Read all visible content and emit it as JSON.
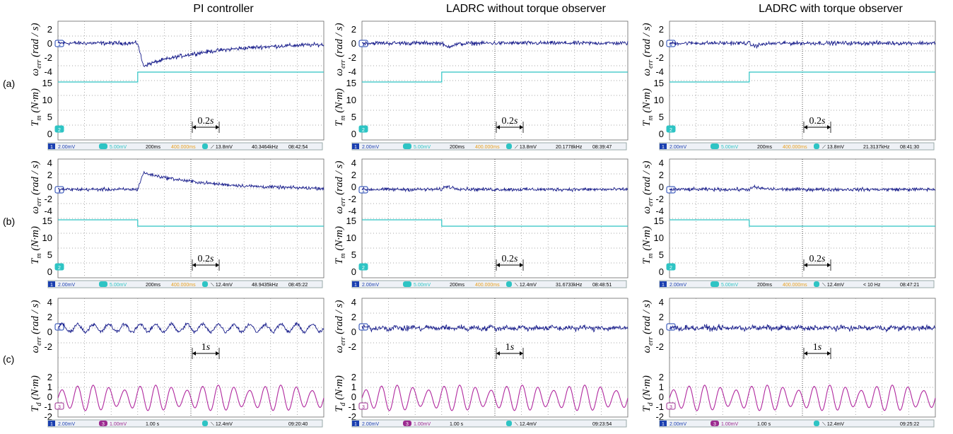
{
  "column_titles": [
    "PI controller",
    "LADRC without torque observer",
    "LADRC with torque observer"
  ],
  "row_labels": [
    "(a)",
    "(b)",
    "(c)"
  ],
  "y_labels": {
    "omega": "ω_err (rad / s)",
    "tm": "T_m (N·m)",
    "td": "T_d (N·m)"
  },
  "colors": {
    "speed_trace": "#1a1f8c",
    "torque_trace_ab": "#2ec4c4",
    "torque_trace_c": "#b0289e",
    "grid": "#8a8a8a",
    "status_ch1": "#1a3fb0",
    "status_ch2": "#2ec4c4",
    "status_ch3": "#9b2a8f",
    "time_orange": "#e8a020"
  },
  "chart_data": [
    {
      "type": "line",
      "row": "(a)",
      "description_units": "speed error rad/s (top), motor torque N·m (bottom)",
      "omega_ticks": [
        "2",
        "0",
        "-2",
        "-4"
      ],
      "torque_ticks": [
        "15",
        "10",
        "5",
        "0"
      ],
      "scale_marker": "0.2s",
      "panels": [
        {
          "title": "PI controller",
          "dip": -3.5,
          "torque_before": 16,
          "torque_after": 17.5,
          "status": {
            "ch1": "2.00mV",
            "ch2": "5.00mV",
            "time": "200ms",
            "delay": "400.000ms",
            "trig": "⟋ 13.8mV",
            "freq": "40.3464kHz",
            "clock": "08:42:54"
          }
        },
        {
          "title": "LADRC without torque observer",
          "dip": -1.0,
          "torque_before": 16,
          "torque_after": 17.5,
          "status": {
            "ch1": "2.00mV",
            "ch2": "5.00mV",
            "time": "200ms",
            "delay": "400.000ms",
            "trig": "⟋ 13.8mV",
            "freq": "20.1778kHz",
            "clock": "08:39:47"
          }
        },
        {
          "title": "LADRC with torque observer",
          "dip": -0.8,
          "torque_before": 16,
          "torque_after": 17.5,
          "status": {
            "ch1": "2.00mV",
            "ch2": "5.00mV",
            "time": "200ms",
            "delay": "400.000ms",
            "trig": "⟋ 13.8mV",
            "freq": "21.3137kHz",
            "clock": "08:41:30"
          }
        }
      ]
    },
    {
      "type": "line",
      "row": "(b)",
      "omega_ticks": [
        "4",
        "2",
        "0",
        "-2",
        "-4"
      ],
      "torque_ticks": [
        "15",
        "10",
        "5",
        "0"
      ],
      "scale_marker": "0.2s",
      "panels": [
        {
          "title": "PI controller",
          "peak": 3.0,
          "torque_before": 15.5,
          "torque_after": 13.2,
          "status": {
            "ch1": "2.00mV",
            "ch2": "5.00mV",
            "time": "200ms",
            "delay": "400.000ms",
            "trig": "⟍ 12.4mV",
            "freq": "48.9435kHz",
            "clock": "08:45:22"
          }
        },
        {
          "title": "LADRC without torque observer",
          "peak": 1.0,
          "torque_before": 15.5,
          "torque_after": 13.2,
          "status": {
            "ch1": "2.00mV",
            "ch2": "5.00mV",
            "time": "200ms",
            "delay": "400.000ms",
            "trig": "⟍ 12.4mV",
            "freq": "31.6733kHz",
            "clock": "08:48:51"
          }
        },
        {
          "title": "LADRC with torque observer",
          "peak": 0.7,
          "torque_before": 15.5,
          "torque_after": 13.2,
          "status": {
            "ch1": "2.00mV",
            "ch2": "5.00mV",
            "time": "200ms",
            "delay": "400.000ms",
            "trig": "⟍ 12.4mV",
            "freq": "< 10 Hz",
            "clock": "08:47:21"
          }
        }
      ]
    },
    {
      "type": "line",
      "row": "(c)",
      "omega_ticks": [
        "4",
        "2",
        "0",
        "-2"
      ],
      "torque_ticks": [
        "2",
        "1",
        "0",
        "-1",
        "-2"
      ],
      "scale_marker": "1s",
      "panels": [
        {
          "title": "PI controller",
          "omega_osc_amp": 0.6,
          "td_amp": 1.3,
          "status": {
            "ch1": "2.00mV",
            "ch2": "1.00mV",
            "time": "1.00 s",
            "trig": "⟍ 12.4mV",
            "clock": "09:20:40"
          }
        },
        {
          "title": "LADRC without torque observer",
          "omega_osc_amp": 0.15,
          "td_amp": 1.3,
          "status": {
            "ch1": "2.00mV",
            "ch2": "1.00mV",
            "time": "1.00 s",
            "trig": "⟍ 12.4mV",
            "clock": "09:23:54"
          }
        },
        {
          "title": "LADRC with torque observer",
          "omega_osc_amp": 0.1,
          "td_amp": 1.3,
          "status": {
            "ch1": "2.00mV",
            "ch2": "1.00mV",
            "time": "1.00 s",
            "trig": "⟍ 12.4mV",
            "clock": "09:25:22"
          }
        }
      ]
    }
  ]
}
